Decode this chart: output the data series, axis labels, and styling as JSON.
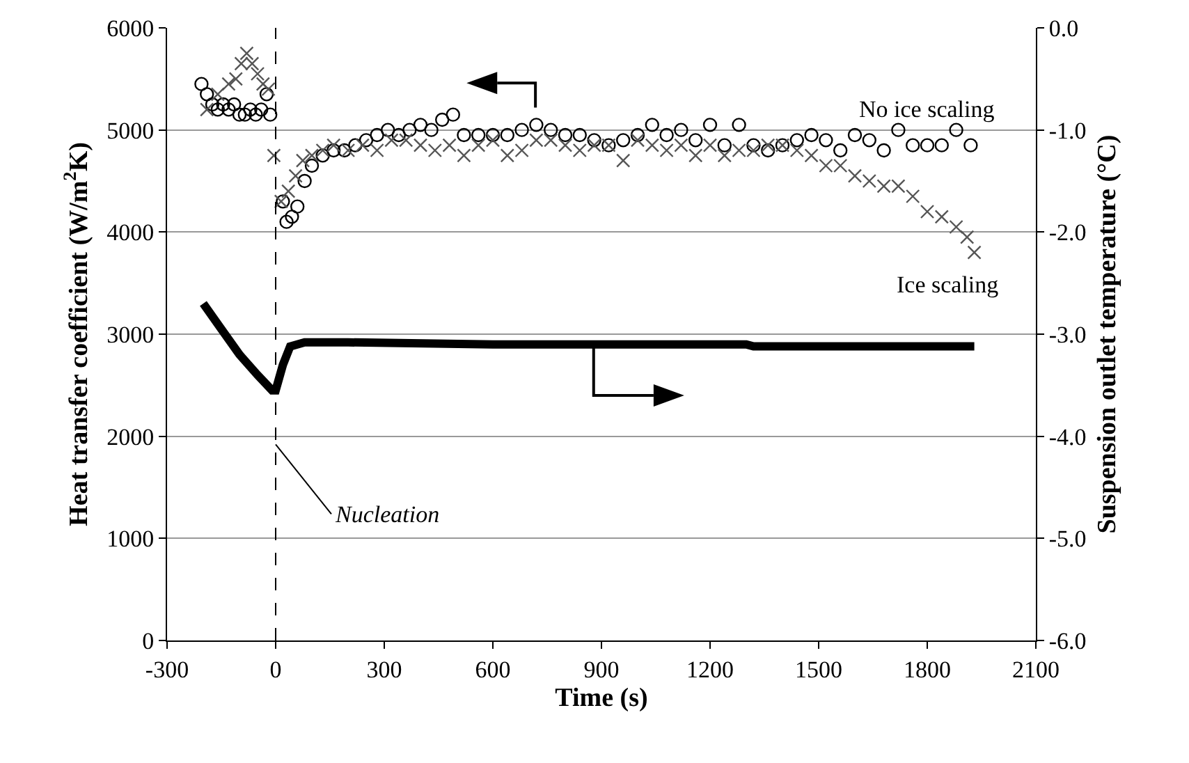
{
  "chart_data": {
    "type": "scatter",
    "xlabel": "Time (s)",
    "ylabel": "Heat transfer coefficient (W/m$^{2}$K)",
    "y2label": "Suspension outlet temperature (°C)",
    "xlim": [
      -300,
      2100
    ],
    "xticks": [
      -300,
      0,
      300,
      600,
      900,
      1200,
      1500,
      1800,
      2100
    ],
    "ylim": [
      0,
      6000
    ],
    "yticks": [
      0,
      1000,
      2000,
      3000,
      4000,
      5000,
      6000
    ],
    "y2lim": [
      -6,
      0
    ],
    "y2ticks": [
      {
        "value": -6,
        "label": "-6.0"
      },
      {
        "value": -5,
        "label": "-5.0"
      },
      {
        "value": -4,
        "label": "-4.0"
      },
      {
        "value": -3,
        "label": "-3.0"
      },
      {
        "value": -2,
        "label": "-2.0"
      },
      {
        "value": -1,
        "label": "-1.0"
      },
      {
        "value": 0,
        "label": "0.0"
      }
    ],
    "grid": "y",
    "legend": false,
    "ref_lines": [
      {
        "axis": "x",
        "value": 0,
        "line_style": "dashed",
        "color": "#000000",
        "label": "Nucleation"
      }
    ],
    "series": [
      {
        "name": "No ice scaling",
        "marker": "circle",
        "color": "#000000",
        "x": [
          -205,
          -190,
          -175,
          -160,
          -145,
          -130,
          -115,
          -100,
          -85,
          -70,
          -55,
          -40,
          -25,
          -15,
          20,
          30,
          45,
          60,
          80,
          100,
          130,
          160,
          190,
          220,
          250,
          280,
          310,
          340,
          370,
          400,
          430,
          460,
          490,
          520,
          560,
          600,
          640,
          680,
          720,
          760,
          800,
          840,
          880,
          920,
          960,
          1000,
          1040,
          1080,
          1120,
          1160,
          1200,
          1240,
          1280,
          1320,
          1360,
          1400,
          1440,
          1480,
          1520,
          1560,
          1600,
          1640,
          1680,
          1720,
          1760,
          1800,
          1840,
          1880,
          1920
        ],
        "values": [
          5450,
          5350,
          5250,
          5200,
          5250,
          5200,
          5250,
          5150,
          5150,
          5200,
          5150,
          5200,
          5350,
          5150,
          4300,
          4100,
          4150,
          4250,
          4500,
          4650,
          4750,
          4800,
          4800,
          4850,
          4900,
          4950,
          5000,
          4950,
          5000,
          5050,
          5000,
          5100,
          5150,
          4950,
          4950,
          4950,
          4950,
          5000,
          5050,
          5000,
          4950,
          4950,
          4900,
          4850,
          4900,
          4950,
          5050,
          4950,
          5000,
          4900,
          5050,
          4850,
          5050,
          4850,
          4800,
          4850,
          4900,
          4950,
          4900,
          4800,
          4950,
          4900,
          4800,
          5000,
          4850,
          4850,
          4850,
          5000,
          4850
        ]
      },
      {
        "name": "Ice scaling",
        "marker": "cross",
        "color": "#555555",
        "x": [
          -190,
          -160,
          -130,
          -110,
          -95,
          -80,
          -65,
          -50,
          -35,
          -20,
          -5,
          15,
          35,
          55,
          75,
          100,
          130,
          160,
          200,
          240,
          280,
          320,
          360,
          400,
          440,
          480,
          520,
          560,
          600,
          640,
          680,
          720,
          760,
          800,
          840,
          880,
          920,
          960,
          1000,
          1040,
          1080,
          1120,
          1160,
          1200,
          1240,
          1280,
          1320,
          1360,
          1400,
          1440,
          1480,
          1520,
          1560,
          1600,
          1640,
          1680,
          1720,
          1760,
          1800,
          1840,
          1880,
          1910,
          1930
        ],
        "values": [
          5200,
          5350,
          5450,
          5500,
          5650,
          5750,
          5650,
          5550,
          5450,
          5400,
          4750,
          4300,
          4400,
          4550,
          4700,
          4750,
          4800,
          4850,
          4800,
          4850,
          4800,
          4900,
          4900,
          4850,
          4800,
          4850,
          4750,
          4850,
          4900,
          4750,
          4800,
          4900,
          4900,
          4850,
          4800,
          4850,
          4850,
          4700,
          4900,
          4850,
          4800,
          4850,
          4750,
          4850,
          4750,
          4800,
          4800,
          4850,
          4850,
          4800,
          4750,
          4650,
          4650,
          4550,
          4500,
          4450,
          4450,
          4350,
          4200,
          4150,
          4050,
          3950,
          3800
        ]
      },
      {
        "type": "line",
        "axis": "y2",
        "marker": "none",
        "color": "#000000",
        "x": [
          -200,
          -150,
          -100,
          -50,
          -10,
          0,
          20,
          40,
          80,
          200,
          600,
          1000,
          1300,
          1320,
          1600,
          1930
        ],
        "values": [
          -2.7,
          -2.95,
          -3.2,
          -3.4,
          -3.55,
          -3.55,
          -3.3,
          -3.12,
          -3.08,
          -3.08,
          -3.1,
          -3.1,
          -3.1,
          -3.12,
          -3.12,
          -3.12
        ]
      }
    ]
  }
}
